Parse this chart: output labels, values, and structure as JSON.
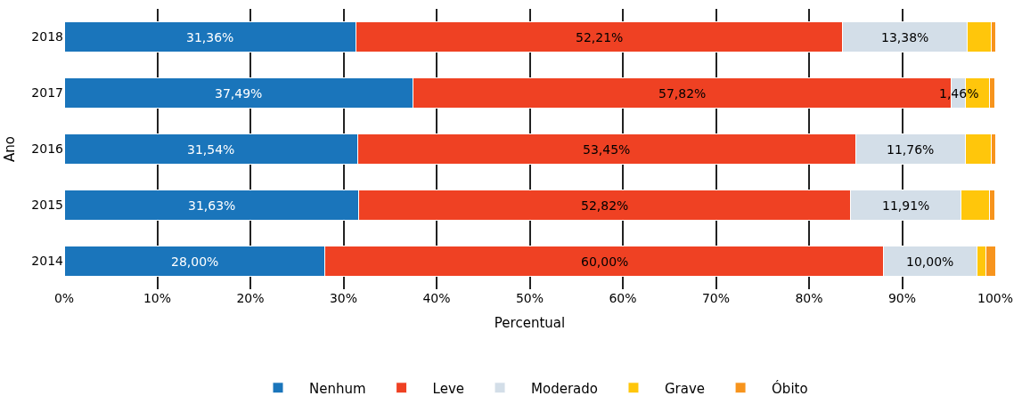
{
  "chart_data": {
    "type": "bar",
    "orientation": "horizontal",
    "stacked": true,
    "xlabel": "Percentual",
    "ylabel": "Ano",
    "categories": [
      "2018",
      "2017",
      "2016",
      "2015",
      "2014"
    ],
    "series": [
      {
        "name": "Nenhum",
        "color": "#1a75bb",
        "values": [
          31.36,
          37.49,
          31.54,
          31.63,
          28.0
        ],
        "value_labels": [
          "31,36%",
          "37,49%",
          "31,54%",
          "31,63%",
          "28,00%"
        ]
      },
      {
        "name": "Leve",
        "color": "#ef4123",
        "values": [
          52.21,
          57.82,
          53.45,
          52.82,
          60.0
        ],
        "value_labels": [
          "52,21%",
          "57,82%",
          "53,45%",
          "52,82%",
          "60,00%"
        ]
      },
      {
        "name": "Moderado",
        "color": "#d3dee8",
        "values": [
          13.38,
          1.46,
          11.76,
          11.91,
          10.0
        ],
        "value_labels": [
          "13,38%",
          "1,46%",
          "11,76%",
          "11,91%",
          "10,00%"
        ]
      },
      {
        "name": "Grave",
        "color": "#ffc60b",
        "values": [
          2.6,
          2.6,
          2.8,
          3.0,
          1.0
        ]
      },
      {
        "name": "Óbito",
        "color": "#f7941d",
        "values": [
          0.5,
          0.6,
          0.5,
          0.6,
          1.0
        ]
      }
    ],
    "xlim": [
      0,
      100
    ],
    "xticks": [
      {
        "value": 0,
        "label": "0%"
      },
      {
        "value": 10,
        "label": "10%"
      },
      {
        "value": 20,
        "label": "20%"
      },
      {
        "value": 30,
        "label": "30%"
      },
      {
        "value": 40,
        "label": "40%"
      },
      {
        "value": 50,
        "label": "50%"
      },
      {
        "value": 60,
        "label": "60%"
      },
      {
        "value": 70,
        "label": "70%"
      },
      {
        "value": 80,
        "label": "80%"
      },
      {
        "value": 90,
        "label": "90%"
      },
      {
        "value": 100,
        "label": "100%"
      }
    ],
    "grid": "x",
    "legend": "bottom"
  }
}
